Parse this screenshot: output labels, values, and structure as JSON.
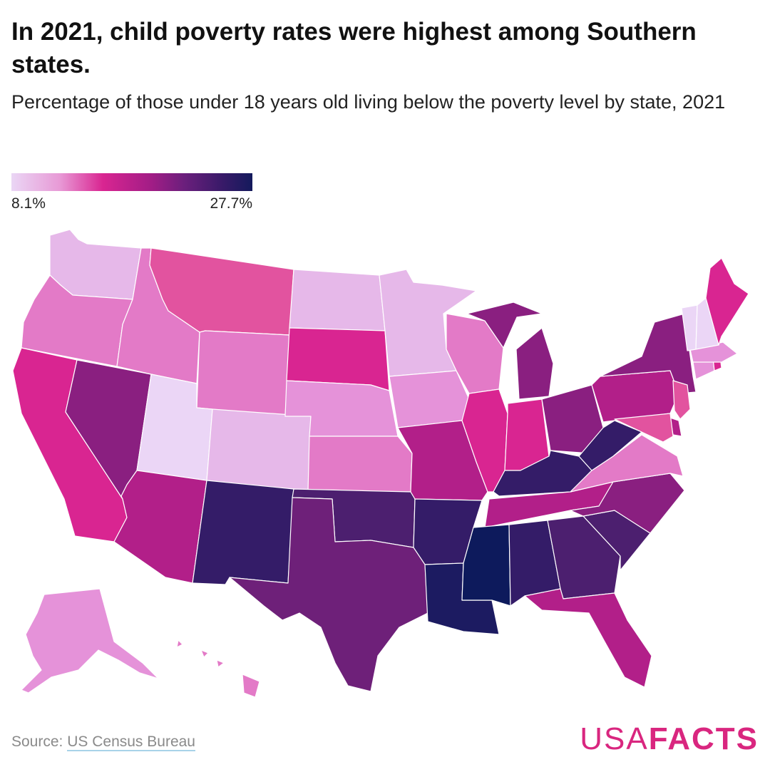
{
  "header": {
    "title": "In 2021, child poverty rates were highest among Southern states.",
    "subtitle": "Percentage of those under 18 years old living below the poverty level by state, 2021"
  },
  "legend": {
    "min_label": "8.1%",
    "max_label": "27.7%"
  },
  "footer": {
    "source_prefix": "Source: ",
    "source_link": "US Census Bureau",
    "logo_light": "USA",
    "logo_bold": "FACTS"
  },
  "colors": {
    "c1": "#ebd6f6",
    "c2": "#e6b8e9",
    "c3": "#e592d9",
    "c4": "#e37ac7",
    "c5": "#e2539f",
    "c6": "#d92591",
    "c7": "#b21f89",
    "c8": "#8a1f80",
    "c9": "#6e2079",
    "c10": "#4c1f6f",
    "c11": "#341c68",
    "c12": "#1c1b61",
    "c13": "#0d1a5c"
  },
  "chart_data": {
    "type": "choropleth",
    "title": "In 2021, child poverty rates were highest among Southern states.",
    "subtitle": "Percentage of those under 18 years old living below the poverty level by state, 2021",
    "unit": "%",
    "scale_range": [
      8.1,
      27.7
    ],
    "color_class_by_state": {
      "WA": "c2",
      "OR": "c4",
      "CA": "c6",
      "NV": "c8",
      "ID": "c4",
      "MT": "c5",
      "WY": "c4",
      "UT": "c1",
      "AZ": "c7",
      "CO": "c2",
      "NM": "c11",
      "ND": "c2",
      "SD": "c6",
      "NE": "c3",
      "KS": "c4",
      "OK": "c10",
      "TX": "c9",
      "MN": "c2",
      "IA": "c3",
      "MO": "c7",
      "AR": "c11",
      "LA": "c12",
      "WI": "c4",
      "IL": "c6",
      "MI": "c8",
      "IN": "c6",
      "OH": "c8",
      "KY": "c11",
      "TN": "c7",
      "MS": "c13",
      "AL": "c11",
      "GA": "c10",
      "FL": "c7",
      "SC": "c10",
      "NC": "c8",
      "VA": "c4",
      "WV": "c11",
      "PA": "c7",
      "NY": "c8",
      "NJ": "c5",
      "DE": "c7",
      "MD": "c5",
      "CT": "c3",
      "RI": "c6",
      "MA": "c3",
      "VT": "c1",
      "NH": "c1",
      "ME": "c6",
      "AK": "c3",
      "HI": "c4"
    },
    "footer_source": "Source: US Census Bureau"
  }
}
